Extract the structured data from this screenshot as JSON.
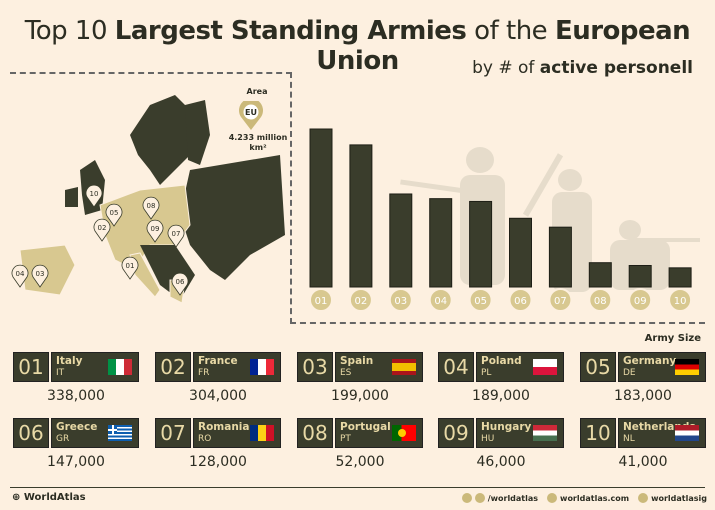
{
  "title": {
    "pre": "Top 10 ",
    "bold1": "Largest Standing Armies",
    "mid": " of the ",
    "bold2": "European Union"
  },
  "subtitle": {
    "pre": "by # of ",
    "bold": "active personell"
  },
  "map": {
    "area_label": "Area",
    "area_badge": "EU",
    "area_value": "4.233 million",
    "area_unit": "km²"
  },
  "army_size_label": "Army Size",
  "colors": {
    "background": "#fdf0e0",
    "bar": "#3a3d2c",
    "accent": "#cbb97a"
  },
  "chart_data": {
    "type": "bar",
    "categories": [
      "01",
      "02",
      "03",
      "04",
      "05",
      "06",
      "07",
      "08",
      "09",
      "10"
    ],
    "values": [
      338000,
      304000,
      199000,
      189000,
      183000,
      147000,
      128000,
      52000,
      46000,
      41000
    ],
    "xlabel": "Army Size",
    "ylabel": "",
    "ylim": [
      0,
      338000
    ]
  },
  "countries": [
    {
      "rank": "01",
      "name": "Italy",
      "code": "IT",
      "value": "338,000",
      "flag": [
        "#009246",
        "#ffffff",
        "#ce2b37"
      ]
    },
    {
      "rank": "02",
      "name": "France",
      "code": "FR",
      "value": "304,000",
      "flag": [
        "#002395",
        "#ffffff",
        "#ed2939"
      ]
    },
    {
      "rank": "03",
      "name": "Spain",
      "code": "ES",
      "value": "199,000",
      "flag": "es"
    },
    {
      "rank": "04",
      "name": "Poland",
      "code": "PL",
      "value": "189,000",
      "flag": "pl"
    },
    {
      "rank": "05",
      "name": "Germany",
      "code": "DE",
      "value": "183,000",
      "flag": "de"
    },
    {
      "rank": "06",
      "name": "Greece",
      "code": "GR",
      "value": "147,000",
      "flag": "gr"
    },
    {
      "rank": "07",
      "name": "Romania",
      "code": "RO",
      "value": "128,000",
      "flag": [
        "#002b7f",
        "#fcd116",
        "#ce1126"
      ]
    },
    {
      "rank": "08",
      "name": "Portugal",
      "code": "PT",
      "value": "52,000",
      "flag": "pt"
    },
    {
      "rank": "09",
      "name": "Hungary",
      "code": "HU",
      "value": "46,000",
      "flag": "hu"
    },
    {
      "rank": "10",
      "name": "Netherlands",
      "code": "NL",
      "value": "41,000",
      "flag": "nl"
    }
  ],
  "footer": {
    "brand": "WorldAtlas",
    "facebook": "/worldatlas",
    "website": "worldatlas.com",
    "instagram": "worldatlasig"
  }
}
